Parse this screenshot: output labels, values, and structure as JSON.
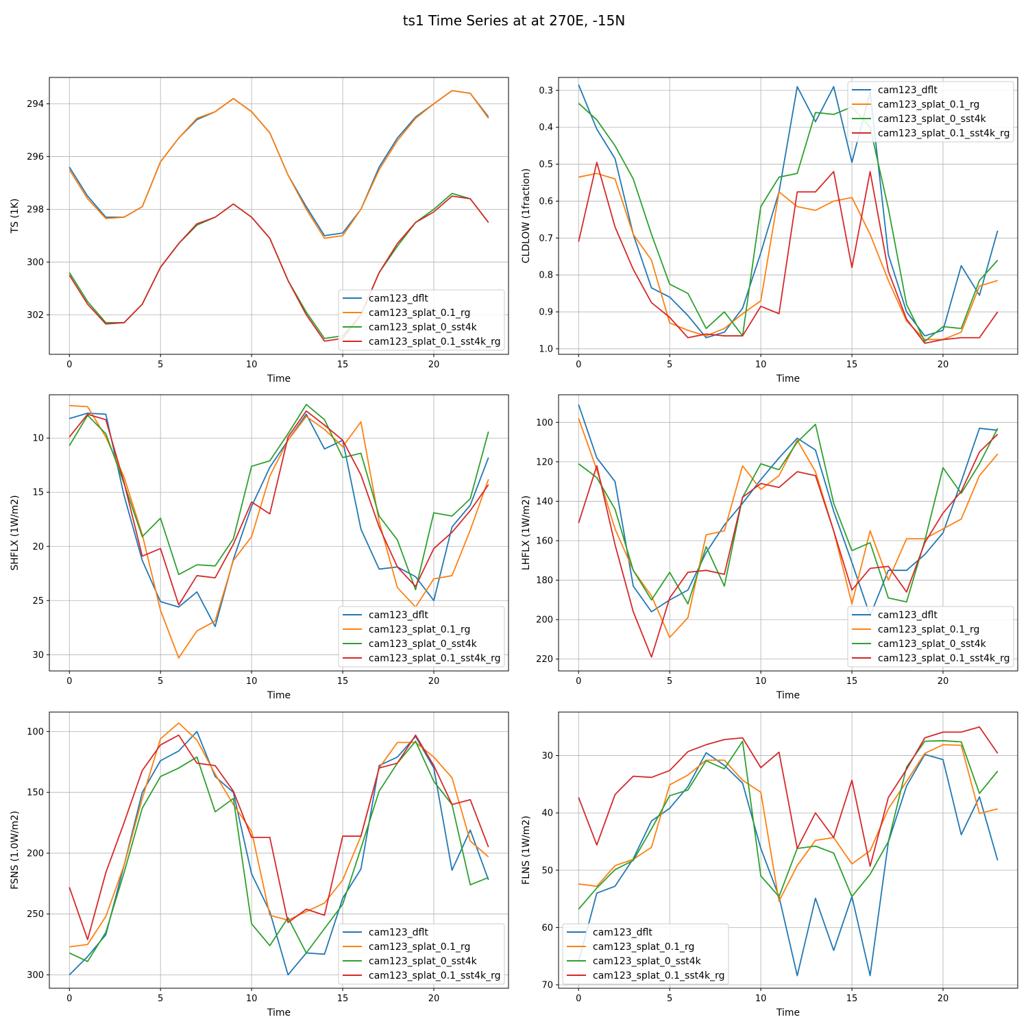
{
  "figure": {
    "suptitle": "ts1 Time Series at at 270E, -15N"
  },
  "chart_data": [
    {
      "type": "line",
      "id": "ts",
      "xlabel": "Time",
      "ylabel": "TS (1K)",
      "xlim": [
        -1.1,
        24.1
      ],
      "ylim": [
        303.5,
        293.0
      ],
      "inverted_y": true,
      "xticks": [
        0,
        5,
        10,
        15,
        20
      ],
      "yticks": [
        294,
        296,
        298,
        300,
        302
      ],
      "legend_loc": "lower right",
      "x": [
        0,
        1,
        2,
        3,
        4,
        5,
        6,
        7,
        8,
        9,
        10,
        11,
        12,
        13,
        14,
        15,
        16,
        17,
        18,
        19,
        20,
        21,
        22,
        23
      ],
      "series": [
        {
          "name": "cam123_dflt",
          "color": "#1f77b4",
          "values": [
            296.4,
            297.5,
            298.3,
            298.3,
            297.9,
            296.2,
            295.3,
            294.6,
            294.3,
            293.8,
            294.3,
            295.1,
            296.7,
            297.9,
            299.0,
            298.9,
            298.0,
            296.4,
            295.3,
            294.5,
            294.0,
            293.5,
            293.6,
            294.5
          ]
        },
        {
          "name": "cam123_splat_0.1_rg",
          "color": "#ff7f0e",
          "values": [
            296.5,
            297.6,
            298.35,
            298.3,
            297.9,
            296.2,
            295.3,
            294.55,
            294.3,
            293.8,
            294.3,
            295.1,
            296.7,
            298.0,
            299.1,
            299.0,
            298.0,
            296.5,
            295.4,
            294.55,
            294.0,
            293.5,
            293.6,
            294.55
          ]
        },
        {
          "name": "cam123_splat_0_sst4k",
          "color": "#2ca02c",
          "values": [
            300.4,
            301.5,
            302.3,
            302.3,
            301.6,
            300.2,
            299.3,
            298.6,
            298.3,
            297.8,
            298.3,
            299.1,
            300.7,
            301.9,
            302.9,
            302.8,
            302.0,
            300.4,
            299.4,
            298.5,
            298.0,
            297.4,
            297.6,
            298.5
          ]
        },
        {
          "name": "cam123_splat_0.1_sst4k_rg",
          "color": "#d62728",
          "values": [
            300.5,
            301.6,
            302.35,
            302.3,
            301.6,
            300.2,
            299.3,
            298.55,
            298.3,
            297.8,
            298.3,
            299.1,
            300.7,
            302.0,
            303.0,
            302.9,
            302.0,
            300.4,
            299.3,
            298.5,
            298.1,
            297.5,
            297.6,
            298.5
          ]
        }
      ]
    },
    {
      "type": "line",
      "id": "cldlow",
      "xlabel": "Time",
      "ylabel": "CLDLOW (1fraction)",
      "xlim": [
        -1.1,
        24.1
      ],
      "ylim": [
        1.015,
        0.265
      ],
      "inverted_y": true,
      "xticks": [
        0,
        5,
        10,
        15,
        20
      ],
      "yticks": [
        0.3,
        0.4,
        0.5,
        0.6,
        0.7,
        0.8,
        0.9,
        1.0
      ],
      "legend_loc": "upper right",
      "x": [
        0,
        1,
        2,
        3,
        4,
        5,
        6,
        7,
        8,
        9,
        10,
        11,
        12,
        13,
        14,
        15,
        16,
        17,
        18,
        19,
        20,
        21,
        22,
        23
      ],
      "series": [
        {
          "name": "cam123_dflt",
          "color": "#1f77b4",
          "values": [
            0.285,
            0.405,
            0.485,
            0.69,
            0.835,
            0.86,
            0.91,
            0.97,
            0.955,
            0.89,
            0.74,
            0.575,
            0.29,
            0.385,
            0.29,
            0.495,
            0.305,
            0.745,
            0.9,
            0.965,
            0.95,
            0.775,
            0.855,
            0.68
          ]
        },
        {
          "name": "cam123_splat_0.1_rg",
          "color": "#ff7f0e",
          "values": [
            0.535,
            0.525,
            0.54,
            0.69,
            0.76,
            0.93,
            0.95,
            0.965,
            0.945,
            0.905,
            0.87,
            0.575,
            0.615,
            0.625,
            0.6,
            0.59,
            0.69,
            0.815,
            0.925,
            0.975,
            0.975,
            0.955,
            0.83,
            0.815
          ]
        },
        {
          "name": "cam123_splat_0_sst4k",
          "color": "#2ca02c",
          "values": [
            0.335,
            0.38,
            0.45,
            0.54,
            0.69,
            0.825,
            0.85,
            0.945,
            0.9,
            0.965,
            0.615,
            0.535,
            0.525,
            0.36,
            0.365,
            0.345,
            0.4,
            0.62,
            0.88,
            0.98,
            0.94,
            0.945,
            0.815,
            0.76
          ]
        },
        {
          "name": "cam123_splat_0.1_sst4k_rg",
          "color": "#d62728",
          "values": [
            0.71,
            0.495,
            0.67,
            0.785,
            0.875,
            0.915,
            0.97,
            0.96,
            0.965,
            0.965,
            0.885,
            0.905,
            0.575,
            0.575,
            0.52,
            0.78,
            0.52,
            0.79,
            0.92,
            0.985,
            0.975,
            0.97,
            0.97,
            0.9
          ]
        }
      ]
    },
    {
      "type": "line",
      "id": "shflx",
      "xlabel": "Time",
      "ylabel": "SHFLX (1W/m2)",
      "xlim": [
        -1.1,
        24.1
      ],
      "ylim": [
        31.5,
        6.0
      ],
      "inverted_y": true,
      "xticks": [
        0,
        5,
        10,
        15,
        20
      ],
      "yticks": [
        10,
        15,
        20,
        25,
        30
      ],
      "legend_loc": "lower right",
      "x": [
        0,
        1,
        2,
        3,
        4,
        5,
        6,
        7,
        8,
        9,
        10,
        11,
        12,
        13,
        14,
        15,
        16,
        17,
        18,
        19,
        20,
        21,
        22,
        23
      ],
      "series": [
        {
          "name": "cam123_dflt",
          "color": "#1f77b4",
          "values": [
            8.2,
            7.7,
            7.8,
            15.3,
            21.3,
            25.1,
            25.6,
            24.2,
            27.4,
            21.2,
            16.3,
            12.7,
            10.2,
            7.8,
            11.0,
            10.2,
            18.4,
            22.1,
            21.9,
            22.8,
            25.0,
            18.2,
            16.2,
            11.8
          ]
        },
        {
          "name": "cam123_splat_0.1_rg",
          "color": "#ff7f0e",
          "values": [
            7.0,
            7.1,
            9.9,
            13.6,
            18.9,
            25.9,
            30.3,
            27.8,
            26.9,
            21.3,
            19.1,
            13.5,
            10.2,
            8.0,
            9.2,
            10.8,
            8.5,
            17.7,
            23.8,
            25.6,
            23.0,
            22.7,
            18.5,
            13.8
          ]
        },
        {
          "name": "cam123_splat_0_sst4k",
          "color": "#2ca02c",
          "values": [
            10.7,
            7.9,
            9.6,
            14.2,
            19.1,
            17.4,
            22.6,
            21.7,
            21.8,
            19.3,
            12.6,
            12.1,
            9.6,
            6.9,
            8.3,
            11.8,
            11.4,
            17.2,
            19.4,
            24.0,
            16.9,
            17.2,
            15.6,
            9.4
          ]
        },
        {
          "name": "cam123_splat_0.1_sst4k_rg",
          "color": "#d62728",
          "values": [
            9.9,
            7.8,
            8.3,
            14.1,
            20.9,
            20.2,
            25.4,
            22.7,
            22.9,
            19.8,
            15.9,
            17.0,
            9.9,
            7.5,
            8.8,
            10.2,
            13.4,
            18.2,
            21.9,
            23.7,
            20.2,
            18.7,
            16.7,
            14.3
          ]
        }
      ]
    },
    {
      "type": "line",
      "id": "lhflx",
      "xlabel": "Time",
      "ylabel": "LHFLX (1W/m2)",
      "xlim": [
        -1.1,
        24.1
      ],
      "ylim": [
        226,
        86
      ],
      "inverted_y": true,
      "xticks": [
        0,
        5,
        10,
        15,
        20
      ],
      "yticks": [
        100,
        120,
        140,
        160,
        180,
        200,
        220
      ],
      "legend_loc": "lower right",
      "x": [
        0,
        1,
        2,
        3,
        4,
        5,
        6,
        7,
        8,
        9,
        10,
        11,
        12,
        13,
        14,
        15,
        16,
        17,
        18,
        19,
        20,
        21,
        22,
        23
      ],
      "series": [
        {
          "name": "cam123_dflt",
          "color": "#1f77b4",
          "values": [
            91,
            118,
            130,
            183,
            196,
            190,
            185,
            166,
            152,
            141,
            129,
            118,
            108,
            114,
            145,
            171,
            198,
            175,
            175,
            167,
            156,
            130,
            103,
            104
          ]
        },
        {
          "name": "cam123_splat_0.1_rg",
          "color": "#ff7f0e",
          "values": [
            98,
            124,
            154,
            175,
            188,
            209,
            199,
            157,
            155,
            122,
            134,
            127,
            109,
            125,
            155,
            192,
            155,
            180,
            159,
            159,
            154,
            149,
            127,
            116
          ]
        },
        {
          "name": "cam123_splat_0_sst4k",
          "color": "#2ca02c",
          "values": [
            121,
            128,
            144,
            175,
            190,
            176,
            192,
            163,
            183,
            138,
            121,
            124,
            110,
            101,
            141,
            165,
            161,
            189,
            191,
            160,
            123,
            136,
            121,
            103
          ]
        },
        {
          "name": "cam123_splat_0.1_sst4k_rg",
          "color": "#d62728",
          "values": [
            151,
            122,
            162,
            196,
            219,
            189,
            176,
            175,
            177,
            138,
            131,
            133,
            125,
            127,
            155,
            185,
            174,
            173,
            186,
            161,
            146,
            135,
            115,
            106
          ]
        }
      ]
    },
    {
      "type": "line",
      "id": "fsns",
      "xlabel": "Time",
      "ylabel": "FSNS (1.0W/m2)",
      "xlim": [
        -1.1,
        24.1
      ],
      "ylim": [
        311,
        84
      ],
      "inverted_y": true,
      "xticks": [
        0,
        5,
        10,
        15,
        20
      ],
      "yticks": [
        100,
        150,
        200,
        250,
        300
      ],
      "legend_loc": "lower right",
      "x": [
        0,
        1,
        2,
        3,
        4,
        5,
        6,
        7,
        8,
        9,
        10,
        11,
        12,
        13,
        14,
        15,
        16,
        17,
        18,
        19,
        20,
        21,
        22,
        23
      ],
      "series": [
        {
          "name": "cam123_dflt",
          "color": "#1f77b4",
          "values": [
            300,
            285,
            267,
            210,
            150,
            124,
            116,
            100,
            137,
            150,
            217,
            248,
            300,
            282,
            283,
            237,
            213,
            128,
            121,
            104,
            130,
            214,
            181,
            222
          ]
        },
        {
          "name": "cam123_splat_0.1_rg",
          "color": "#ff7f0e",
          "values": [
            277,
            275,
            252,
            210,
            155,
            106,
            93,
            107,
            135,
            160,
            182,
            251,
            255,
            248,
            241,
            222,
            186,
            130,
            109,
            109,
            121,
            138,
            190,
            203
          ]
        },
        {
          "name": "cam123_splat_0_sst4k",
          "color": "#2ca02c",
          "values": [
            282,
            289,
            265,
            216,
            163,
            137,
            130,
            121,
            166,
            155,
            258,
            276,
            253,
            282,
            262,
            242,
            196,
            149,
            126,
            108,
            141,
            160,
            226,
            220
          ]
        },
        {
          "name": "cam123_splat_0.1_sst4k_rg",
          "color": "#d62728",
          "values": [
            228,
            271,
            216,
            175,
            132,
            111,
            103,
            126,
            128,
            149,
            187,
            187,
            257,
            246,
            251,
            186,
            186,
            130,
            126,
            103,
            128,
            160,
            156,
            195
          ]
        }
      ]
    },
    {
      "type": "line",
      "id": "flns",
      "xlabel": "Time",
      "ylabel": "FLNS (1W/m2)",
      "xlim": [
        -1.1,
        24.1
      ],
      "ylim": [
        70.6,
        22.4
      ],
      "inverted_y": true,
      "xticks": [
        0,
        5,
        10,
        15,
        20
      ],
      "yticks": [
        30,
        40,
        50,
        60,
        70
      ],
      "legend_loc": "lower left",
      "x": [
        0,
        1,
        2,
        3,
        4,
        5,
        6,
        7,
        8,
        9,
        10,
        11,
        12,
        13,
        14,
        15,
        16,
        17,
        18,
        19,
        20,
        21,
        22,
        23
      ],
      "series": [
        {
          "name": "cam123_dflt",
          "color": "#1f77b4",
          "values": [
            66,
            54,
            52.8,
            48,
            41.4,
            39.2,
            35.4,
            29.5,
            31.7,
            34.8,
            46.2,
            54.6,
            68.4,
            54.9,
            64,
            54.6,
            68.4,
            45.1,
            35.3,
            29.8,
            30.7,
            43.8,
            37.2,
            48.3
          ]
        },
        {
          "name": "cam123_splat_0.1_rg",
          "color": "#ff7f0e",
          "values": [
            52.4,
            52.8,
            49.2,
            48.1,
            46,
            35.1,
            33.4,
            30.8,
            30.8,
            34.3,
            36.4,
            55.4,
            49.2,
            44.8,
            44.3,
            48.9,
            46.6,
            39.3,
            34.5,
            29.6,
            28.1,
            28.2,
            40.1,
            39.3
          ]
        },
        {
          "name": "cam123_splat_0_sst4k",
          "color": "#2ca02c",
          "values": [
            56.8,
            53.1,
            49.9,
            48.3,
            42.8,
            37,
            36,
            30.9,
            32.3,
            27.5,
            51,
            54.6,
            46.2,
            45.8,
            47,
            54.6,
            50.7,
            45,
            32,
            27.5,
            27.4,
            27.6,
            36.6,
            32.7
          ]
        },
        {
          "name": "cam123_splat_0.1_sst4k_rg",
          "color": "#d62728",
          "values": [
            37.3,
            45.6,
            36.8,
            33.6,
            33.8,
            32.6,
            29.3,
            28.1,
            27.2,
            26.9,
            32.1,
            29.4,
            46.2,
            40,
            44.3,
            34.3,
            49.3,
            37.3,
            32.4,
            26.9,
            25.9,
            25.9,
            25,
            29.6
          ]
        }
      ]
    }
  ]
}
